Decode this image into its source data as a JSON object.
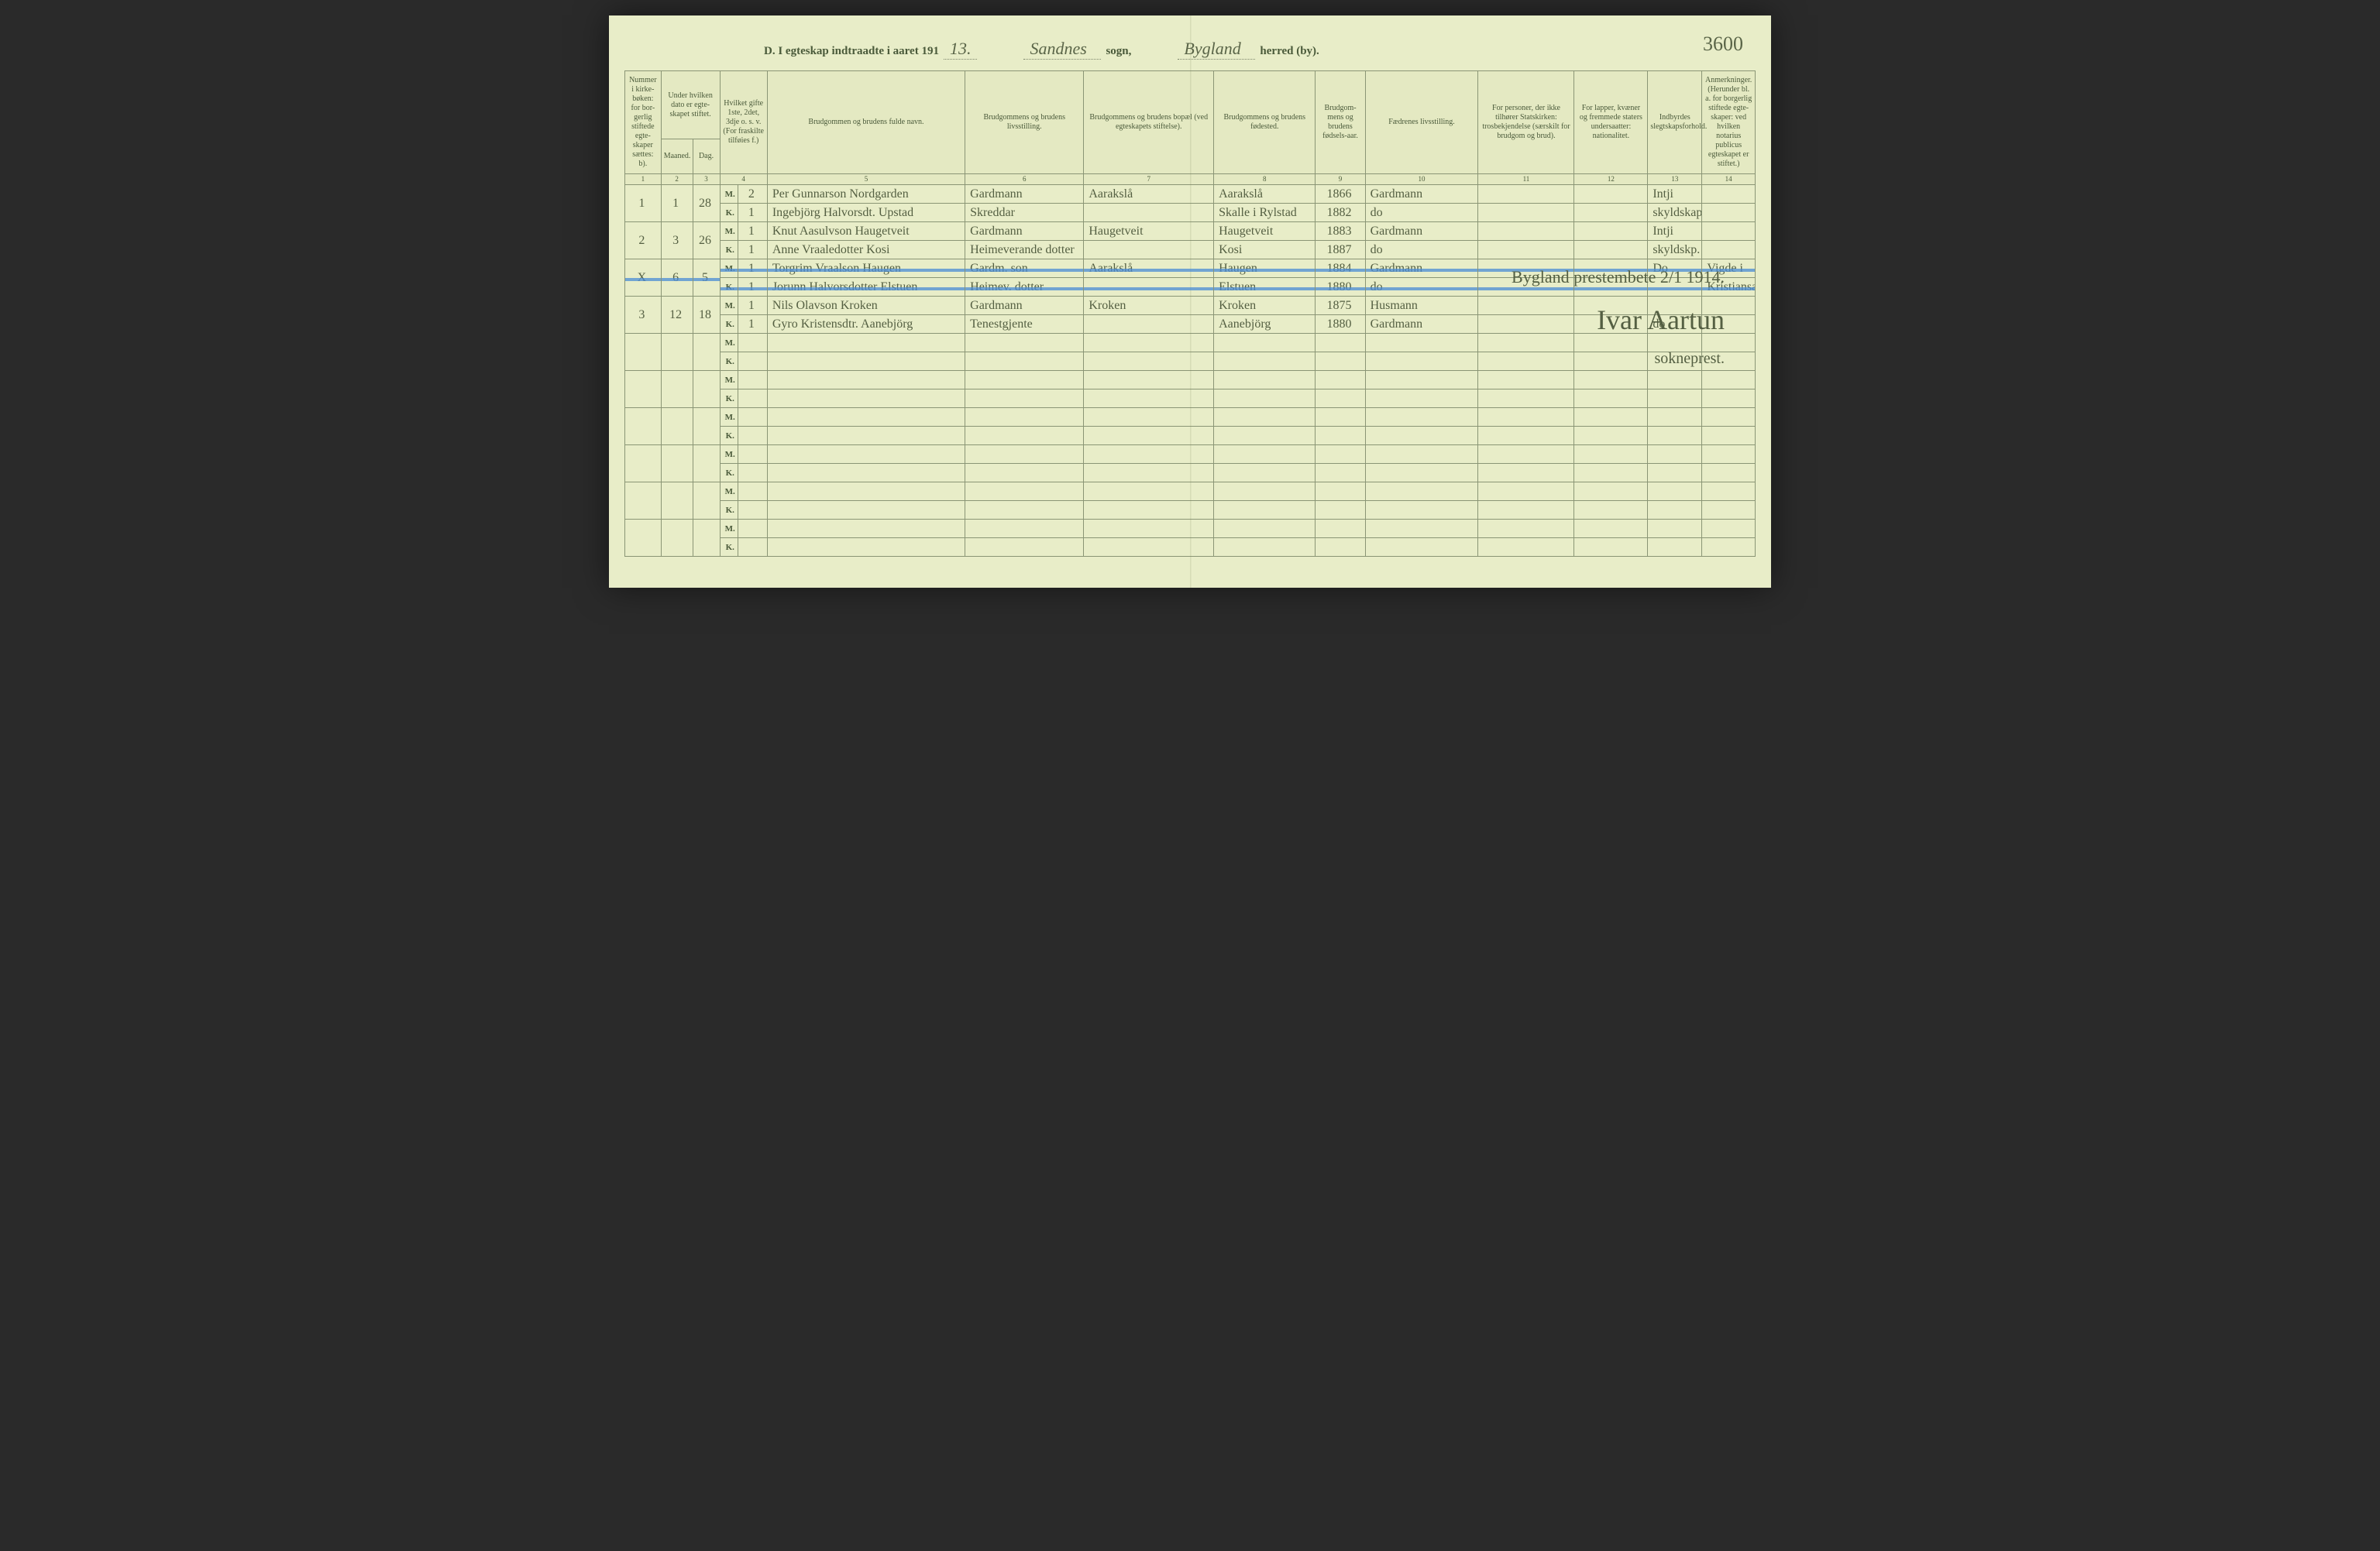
{
  "colors": {
    "page_bg": "#e8edc8",
    "border": "#8a9575",
    "ink": "#545f42",
    "print": "#4a5a3a",
    "strike": "#4a8bd6"
  },
  "header": {
    "title_prefix": "D.  I egteskap indtraadte i aaret 191",
    "year_suffix": "13.",
    "sogn_value": "Sandnes",
    "sogn_label": "sogn,",
    "herred_value": "Bygland",
    "herred_label": "herred (by).",
    "page_number": "3600"
  },
  "columns": {
    "c1": "Nummer i kirke-bøken: for bor-gerlig stiftede egte-skaper sættes: b).",
    "c2_top": "Under hvilken dato er egte-skapet stiftet.",
    "c2_m": "Maaned.",
    "c2_d": "Dag.",
    "c3_top": "Hvilket gifte 1ste, 2det, 3dje o. s. v. (For fraskilte tilføies f.)",
    "c4": "Brudgommen og brudens fulde navn.",
    "c5": "Brudgommens og brudens livsstilling.",
    "c6": "Brudgommens og brudens bopæl (ved egteskapets stiftelse).",
    "c7": "Brudgommens og brudens fødested.",
    "c8": "Brudgom-mens og brudens fødsels-aar.",
    "c9": "Fædrenes livsstilling.",
    "c10": "For personer, der ikke tilhører Statskirken: trosbekjendelse (særskilt for brudgom og brud).",
    "c11": "For lapper, kvæner og fremmede staters undersaatter: nationalitet.",
    "c12": "Indbyrdes slegtskapsforhold.",
    "c13": "Anmerkninger. (Herunder bl. a. for borgerlig stiftede egte-skaper: ved hvilken notarius publicus egteskapet er stiftet.)"
  },
  "colnums": [
    "1",
    "2",
    "3",
    "4",
    "5",
    "6",
    "7",
    "8",
    "9",
    "10",
    "11",
    "12",
    "13",
    "14"
  ],
  "mk": {
    "m": "M.",
    "k": "K."
  },
  "entries": [
    {
      "num": "1",
      "month": "1",
      "day": "28",
      "m": {
        "gifte": "2",
        "name": "Per Gunnarson Nordgarden",
        "stilling": "Gardmann",
        "bopael": "Aarakslå",
        "fodested": "Aarakslå",
        "aar": "1866",
        "far": "Gardmann",
        "tros": "",
        "nat": "",
        "slegt": "Intji",
        "anm": ""
      },
      "k": {
        "gifte": "1",
        "name": "Ingebjörg Halvorsdt. Upstad",
        "stilling": "Skreddar",
        "bopael": "",
        "fodested": "Skalle i Rylstad",
        "aar": "1882",
        "far": "do",
        "tros": "",
        "nat": "",
        "slegt": "skyldskap",
        "anm": ""
      }
    },
    {
      "num": "2",
      "month": "3",
      "day": "26",
      "m": {
        "gifte": "1",
        "name": "Knut Aasulvson Haugetveit",
        "stilling": "Gardmann",
        "bopael": "Haugetveit",
        "fodested": "Haugetveit",
        "aar": "1883",
        "far": "Gardmann",
        "tros": "",
        "nat": "",
        "slegt": "Intji",
        "anm": ""
      },
      "k": {
        "gifte": "1",
        "name": "Anne Vraaledotter Kosi",
        "stilling": "Heimeverande dotter",
        "bopael": "",
        "fodested": "Kosi",
        "aar": "1887",
        "far": "do",
        "tros": "",
        "nat": "",
        "slegt": "skyldskp.",
        "anm": ""
      }
    },
    {
      "num": "X",
      "month": "6",
      "day": "5",
      "struck": true,
      "m": {
        "gifte": "1",
        "name": "Torgrim Vraalson Haugen",
        "stilling": "Gardm. son",
        "bopael": "Aarakslå",
        "fodested": "Haugen",
        "aar": "1884",
        "far": "Gardmann",
        "tros": "",
        "nat": "",
        "slegt": "Do",
        "anm": "Vigde i"
      },
      "k": {
        "gifte": "1",
        "name": "Jorunn Halvorsdotter Elstuen",
        "stilling": "Heimev. dotter",
        "bopael": "",
        "fodested": "Elstuen",
        "aar": "1880",
        "far": "do",
        "tros": "",
        "nat": "",
        "slegt": "",
        "anm": "Kristiansand"
      }
    },
    {
      "num": "3",
      "month": "12",
      "day": "18",
      "m": {
        "gifte": "1",
        "name": "Nils Olavson Kroken",
        "stilling": "Gardmann",
        "bopael": "Kroken",
        "fodested": "Kroken",
        "aar": "1875",
        "far": "Husmann",
        "tros": "",
        "nat": "",
        "slegt": "",
        "anm": ""
      },
      "k": {
        "gifte": "1",
        "name": "Gyro Kristensdtr. Aanebjörg",
        "stilling": "Tenestgjente",
        "bopael": "",
        "fodested": "Aanebjörg",
        "aar": "1880",
        "far": "Gardmann",
        "tros": "",
        "nat": "",
        "slegt": "do",
        "anm": ""
      }
    }
  ],
  "blank_rows": 6,
  "signature": {
    "line1": "Bygland prestembete 2/1 1914.",
    "name": "Ivar Aartun",
    "title": "sokneprest."
  },
  "column_widths_pct": [
    3.2,
    2.8,
    2.4,
    1.6,
    2.6,
    17.5,
    10.5,
    11.5,
    9.0,
    4.4,
    10.0,
    8.5,
    6.5,
    4.8,
    4.7
  ]
}
